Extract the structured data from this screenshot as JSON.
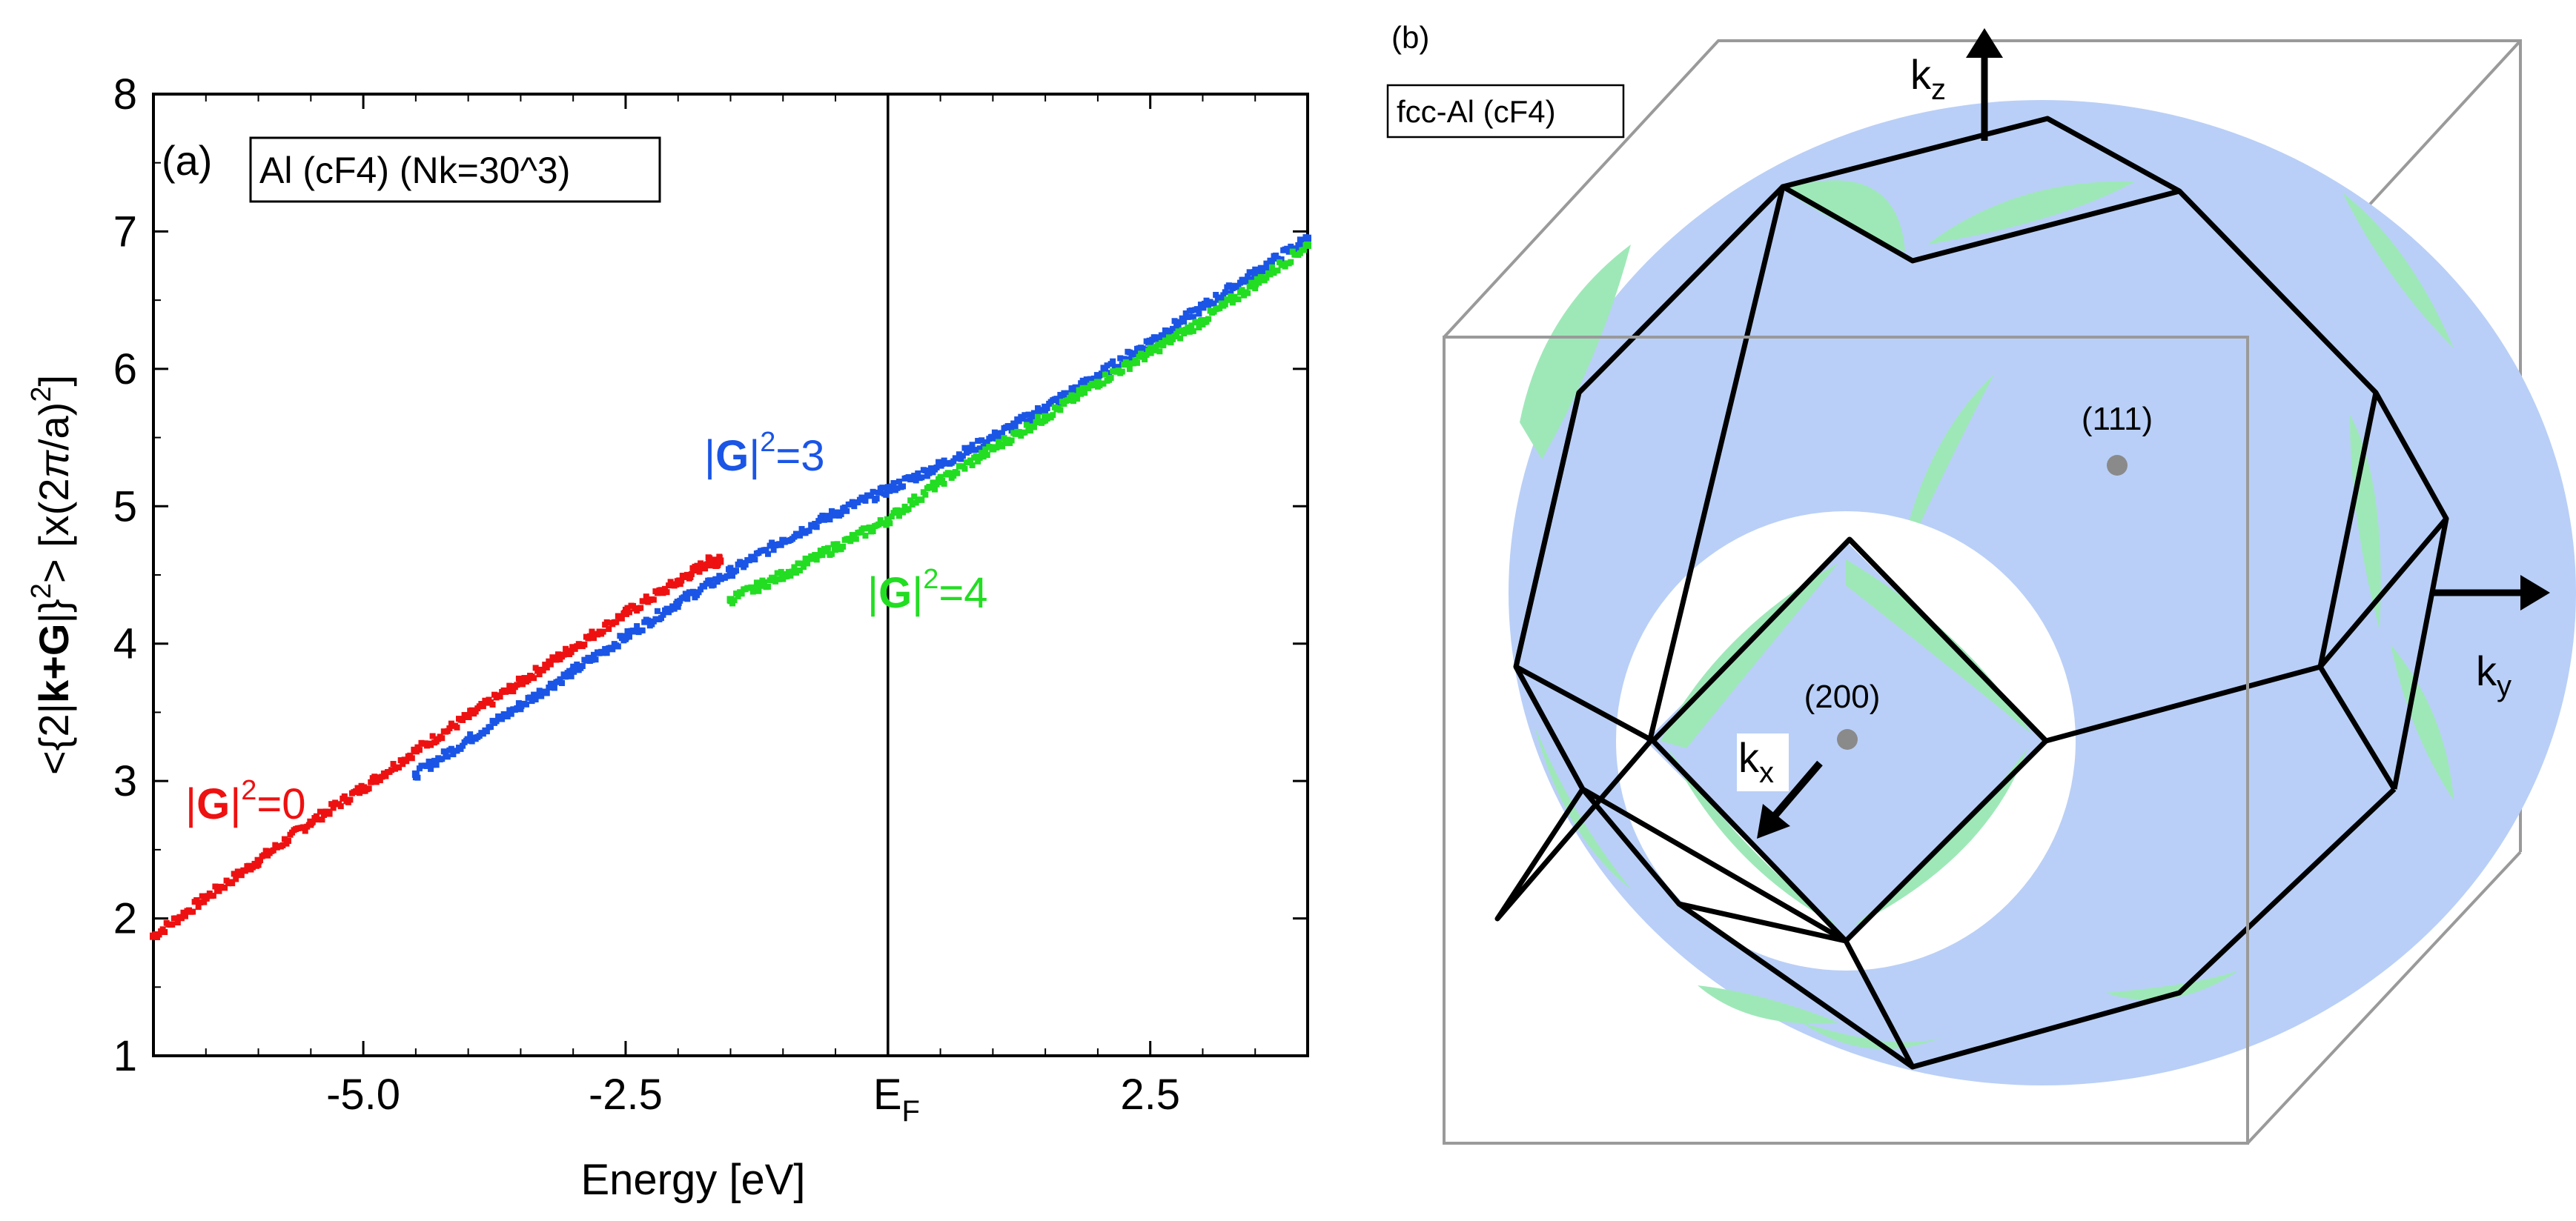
{
  "panel_a": {
    "label": "(a)",
    "legend": "Al (cF4) (Nk=30^3)",
    "ylabel": "<{2|k+G|}²> [x(2π/a)²]",
    "ylabel_parts": {
      "pre": "<{2|",
      "bold": "k+G",
      "mid": "|}",
      "sup1": "2",
      "post": "> [x(2",
      "pi": "π",
      "post2": "/a)",
      "sup2": "2",
      "close": "]"
    },
    "xlabel": "Energy [eV]",
    "fermi_label": {
      "main": "E",
      "sub": "F"
    },
    "series_labels": [
      {
        "g": "G",
        "sup": "2",
        "val": "=0",
        "color": "#ee1111"
      },
      {
        "g": "G",
        "sup": "2",
        "val": "=3",
        "color": "#1a55e6"
      },
      {
        "g": "G",
        "sup": "2",
        "val": "=4",
        "color": "#22dd22"
      }
    ]
  },
  "panel_b": {
    "label": "(b)",
    "legend": "fcc-Al (cF4)",
    "axes": [
      {
        "main": "k",
        "sub": "z"
      },
      {
        "main": "k",
        "sub": "y"
      },
      {
        "main": "k",
        "sub": "x"
      }
    ],
    "points": [
      "(111)",
      "(200)"
    ],
    "colors": {
      "fermi_blue": "#b9cff7",
      "fermi_green": "#9ee8b8",
      "bz_edge": "#000000",
      "box": "#9a9a9a",
      "point": "#8a8a8a"
    }
  },
  "chart_data": {
    "type": "scatter",
    "title": "Al (cF4) (Nk=30^3)",
    "xlabel": "Energy [eV]",
    "ylabel": "<{2|k+G|}²> [x(2π/a)²]",
    "xlim": [
      -7.0,
      4.0
    ],
    "ylim": [
      1,
      8
    ],
    "xticks": [
      -5.0,
      -2.5,
      0.0,
      2.5
    ],
    "xtick_labels": [
      "-5.0",
      "-2.5",
      "EF",
      "2.5"
    ],
    "yticks": [
      1,
      2,
      3,
      4,
      5,
      6,
      7,
      8
    ],
    "ytick_labels": [
      "1",
      "2",
      "3",
      "4",
      "5",
      "6",
      "7",
      "8"
    ],
    "vertical_line": 0.0,
    "series": [
      {
        "name": "|G|^2=0",
        "color": "#ee1111",
        "x": [
          -7.0,
          -6.5,
          -6.0,
          -5.5,
          -5.0,
          -4.5,
          -4.0,
          -3.5,
          -3.0,
          -2.5,
          -2.0,
          -1.7,
          -1.6
        ],
        "y": [
          1.87,
          2.15,
          2.42,
          2.7,
          2.95,
          3.22,
          3.47,
          3.72,
          3.97,
          4.22,
          4.45,
          4.6,
          4.6
        ]
      },
      {
        "name": "|G|^2=3",
        "color": "#1a55e6",
        "x": [
          -4.5,
          -4.0,
          -3.5,
          -3.0,
          -2.5,
          -2.0,
          -1.5,
          -1.0,
          -0.5,
          0.0,
          0.5,
          1.0,
          1.5,
          2.0,
          2.5,
          3.0,
          3.5,
          4.0
        ],
        "y": [
          3.05,
          3.3,
          3.55,
          3.8,
          4.05,
          4.3,
          4.52,
          4.75,
          4.95,
          5.12,
          5.3,
          5.5,
          5.72,
          5.95,
          6.2,
          6.45,
          6.7,
          6.95
        ]
      },
      {
        "name": "|G|^2=4",
        "color": "#22dd22",
        "x": [
          -1.5,
          -1.0,
          -0.5,
          0.0,
          0.5,
          1.0,
          1.5,
          2.0,
          2.5,
          3.0,
          3.5,
          4.0
        ],
        "y": [
          4.32,
          4.5,
          4.7,
          4.9,
          5.18,
          5.42,
          5.65,
          5.9,
          6.12,
          6.35,
          6.62,
          6.9
        ]
      }
    ]
  }
}
